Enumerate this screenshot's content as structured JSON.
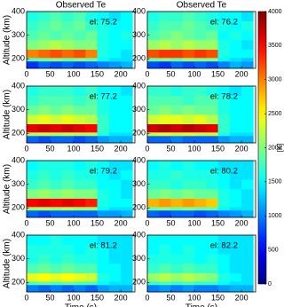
{
  "chart_data": [
    {
      "type": "heatmap",
      "title": "Observed Te",
      "annotation": "el: 75.2",
      "ylabel": "Altitude (km)",
      "xbins": [
        0,
        25,
        50,
        75,
        100,
        125,
        150,
        175,
        200,
        225
      ],
      "ybins": [
        160,
        190,
        205,
        240,
        280,
        320,
        360,
        400
      ],
      "xlim": [
        0,
        230
      ],
      "ylim": [
        160,
        400
      ],
      "xticks": [
        0,
        50,
        100,
        150,
        200
      ],
      "yticks": [
        200,
        300,
        400
      ],
      "z": [
        [
          700,
          900,
          800,
          900,
          800,
          900,
          1000,
          1100,
          1200
        ],
        [
          1800,
          1900,
          2000,
          1900,
          2000,
          1900,
          1500,
          1400,
          1400
        ],
        [
          3000,
          3100,
          3200,
          3100,
          3200,
          3000,
          1600,
          1500,
          1400
        ],
        [
          2000,
          2100,
          2200,
          2100,
          2000,
          2000,
          1600,
          1500,
          1500
        ],
        [
          1800,
          1900,
          1800,
          1900,
          1800,
          1900,
          1600,
          1500,
          1600
        ],
        [
          1700,
          1800,
          1900,
          1800,
          1900,
          1700,
          1600,
          1500,
          1500
        ],
        [
          1600,
          1700,
          1800,
          1700,
          1800,
          1600,
          1500,
          1400,
          1500
        ]
      ]
    },
    {
      "type": "heatmap",
      "title": "Observed Te",
      "annotation": "el: 76.2",
      "xbins": [
        0,
        25,
        50,
        75,
        100,
        125,
        150,
        175,
        200,
        225
      ],
      "ybins": [
        160,
        190,
        205,
        240,
        280,
        320,
        360,
        400
      ],
      "xlim": [
        0,
        230
      ],
      "ylim": [
        160,
        400
      ],
      "xticks": [
        0,
        50,
        100,
        150,
        200
      ],
      "yticks": [
        200,
        300,
        400
      ],
      "z": [
        [
          800,
          700,
          900,
          800,
          900,
          800,
          1000,
          1200,
          1100
        ],
        [
          1900,
          2000,
          1900,
          2100,
          2000,
          2000,
          1500,
          1400,
          1300
        ],
        [
          3200,
          3300,
          3300,
          3200,
          3300,
          3200,
          1600,
          1500,
          1500
        ],
        [
          2100,
          2200,
          2100,
          2200,
          2100,
          2100,
          1600,
          1500,
          1400
        ],
        [
          1800,
          1900,
          2000,
          1900,
          1800,
          1900,
          1500,
          1600,
          1500
        ],
        [
          1700,
          1800,
          1800,
          1900,
          1800,
          1700,
          1600,
          1500,
          1600
        ],
        [
          1600,
          1700,
          1700,
          1800,
          1700,
          1600,
          1500,
          1500,
          1400
        ]
      ]
    },
    {
      "type": "heatmap",
      "annotation": "el: 77.2",
      "ylabel": "Altitude (km)",
      "xbins": [
        0,
        25,
        50,
        75,
        100,
        125,
        150,
        175,
        200,
        225
      ],
      "ybins": [
        160,
        190,
        205,
        240,
        280,
        320,
        360,
        400
      ],
      "xlim": [
        0,
        230
      ],
      "ylim": [
        160,
        400
      ],
      "xticks": [
        0,
        50,
        100,
        150,
        200
      ],
      "yticks": [
        200,
        300,
        400
      ],
      "z": [
        [
          900,
          800,
          900,
          900,
          800,
          900,
          1100,
          1200,
          1200
        ],
        [
          2200,
          2300,
          2200,
          2300,
          2200,
          2200,
          1600,
          1400,
          1400
        ],
        [
          3600,
          3700,
          3600,
          3700,
          3600,
          3500,
          1700,
          1500,
          1500
        ],
        [
          2300,
          2400,
          2300,
          2400,
          2300,
          2200,
          1700,
          1500,
          1500
        ],
        [
          1900,
          2000,
          1900,
          2000,
          1900,
          1900,
          1600,
          1500,
          1500
        ],
        [
          1700,
          1800,
          1800,
          1800,
          1700,
          1800,
          1600,
          1500,
          1500
        ],
        [
          1600,
          1700,
          1700,
          1700,
          1600,
          1700,
          1500,
          1500,
          1400
        ]
      ]
    },
    {
      "type": "heatmap",
      "annotation": "el: 78.2",
      "xbins": [
        0,
        25,
        50,
        75,
        100,
        125,
        150,
        175,
        200,
        225
      ],
      "ybins": [
        160,
        190,
        205,
        240,
        280,
        320,
        360,
        400
      ],
      "xlim": [
        0,
        230
      ],
      "ylim": [
        160,
        400
      ],
      "xticks": [
        0,
        50,
        100,
        150,
        200
      ],
      "yticks": [
        200,
        300,
        400
      ],
      "z": [
        [
          900,
          900,
          1000,
          900,
          900,
          900,
          1100,
          1200,
          1200
        ],
        [
          2300,
          2400,
          2300,
          2400,
          2300,
          2300,
          1600,
          1400,
          1400
        ],
        [
          3700,
          3800,
          3700,
          3800,
          3700,
          3600,
          1700,
          1500,
          1500
        ],
        [
          2300,
          2400,
          2400,
          2300,
          2400,
          2200,
          1700,
          1500,
          1500
        ],
        [
          1900,
          2000,
          1900,
          2000,
          1900,
          1900,
          1600,
          1500,
          1500
        ],
        [
          1800,
          1800,
          1800,
          1700,
          1800,
          1800,
          1600,
          1500,
          1500
        ],
        [
          1700,
          1700,
          1600,
          1700,
          1700,
          1600,
          1500,
          1400,
          1500
        ]
      ]
    },
    {
      "type": "heatmap",
      "annotation": "el: 79.2",
      "ylabel": "Altitude (km)",
      "xbins": [
        0,
        25,
        50,
        75,
        100,
        125,
        150,
        175,
        200,
        225
      ],
      "ybins": [
        160,
        190,
        205,
        240,
        280,
        320,
        360,
        400
      ],
      "xlim": [
        0,
        230
      ],
      "ylim": [
        160,
        400
      ],
      "xticks": [
        0,
        50,
        100,
        150,
        200
      ],
      "yticks": [
        200,
        300,
        400
      ],
      "z": [
        [
          900,
          800,
          900,
          900,
          900,
          900,
          1100,
          1100,
          1200
        ],
        [
          2100,
          2200,
          2100,
          2200,
          2100,
          2100,
          1500,
          1400,
          1400
        ],
        [
          3500,
          3600,
          3500,
          3600,
          3500,
          3400,
          1600,
          1500,
          1500
        ],
        [
          2000,
          2100,
          2000,
          2100,
          2000,
          2000,
          1600,
          1500,
          1400
        ],
        [
          1700,
          1800,
          1700,
          1800,
          1700,
          1700,
          1500,
          1500,
          1400
        ],
        [
          1600,
          1700,
          1600,
          1700,
          1600,
          1600,
          1500,
          1400,
          1500
        ],
        [
          1500,
          1600,
          1600,
          1600,
          1500,
          1600,
          1500,
          1400,
          1400
        ]
      ]
    },
    {
      "type": "heatmap",
      "annotation": "el: 80.2",
      "xbins": [
        0,
        25,
        50,
        75,
        100,
        125,
        150,
        175,
        200,
        225
      ],
      "ybins": [
        160,
        190,
        205,
        240,
        280,
        320,
        360,
        400
      ],
      "xlim": [
        0,
        230
      ],
      "ylim": [
        160,
        400
      ],
      "xticks": [
        0,
        50,
        100,
        150,
        200
      ],
      "yticks": [
        200,
        300,
        400
      ],
      "z": [
        [
          900,
          800,
          900,
          900,
          800,
          900,
          1000,
          1100,
          1200
        ],
        [
          1900,
          2000,
          1900,
          2000,
          1900,
          1900,
          1500,
          1400,
          1400
        ],
        [
          2800,
          2900,
          2800,
          2900,
          2800,
          2700,
          1600,
          1500,
          1400
        ],
        [
          1900,
          2000,
          1900,
          2000,
          1900,
          1900,
          1600,
          1500,
          1400
        ],
        [
          1700,
          1700,
          1600,
          1700,
          1700,
          1600,
          1500,
          1400,
          1500
        ],
        [
          1600,
          1600,
          1700,
          1600,
          1600,
          1600,
          1500,
          1400,
          1400
        ],
        [
          1500,
          1600,
          1500,
          1600,
          1500,
          1500,
          1400,
          1400,
          1400
        ]
      ]
    },
    {
      "type": "heatmap",
      "annotation": "el: 81.2",
      "ylabel": "Altitude (km)",
      "xlabel": "Time (s)",
      "xbins": [
        0,
        25,
        50,
        75,
        100,
        125,
        150,
        175,
        200,
        225
      ],
      "ybins": [
        160,
        190,
        205,
        240,
        280,
        320,
        360,
        400
      ],
      "xlim": [
        0,
        230
      ],
      "ylim": [
        160,
        400
      ],
      "xticks": [
        0,
        50,
        100,
        150,
        200
      ],
      "yticks": [
        200,
        300,
        400
      ],
      "z": [
        [
          1000,
          900,
          1000,
          900,
          1000,
          900,
          1100,
          1200,
          1200
        ],
        [
          1800,
          1900,
          1800,
          1900,
          1800,
          1800,
          1500,
          1400,
          1400
        ],
        [
          2400,
          2500,
          2400,
          2500,
          2400,
          2300,
          1600,
          1500,
          1400
        ],
        [
          1800,
          1900,
          1800,
          1900,
          1800,
          1800,
          1500,
          1500,
          1400
        ],
        [
          1600,
          1700,
          1600,
          1700,
          1600,
          1600,
          1500,
          1400,
          1400
        ],
        [
          1600,
          1600,
          1600,
          1600,
          1500,
          1600,
          1500,
          1400,
          1400
        ],
        [
          1500,
          1500,
          1600,
          1500,
          1500,
          1500,
          1400,
          1400,
          1400
        ]
      ]
    },
    {
      "type": "heatmap",
      "annotation": "el: 82.2",
      "xlabel": "Time (s)",
      "xbins": [
        0,
        25,
        50,
        75,
        100,
        125,
        150,
        175,
        200,
        225
      ],
      "ybins": [
        160,
        190,
        205,
        240,
        280,
        320,
        360,
        400
      ],
      "xlim": [
        0,
        230
      ],
      "ylim": [
        160,
        400
      ],
      "xticks": [
        0,
        50,
        100,
        150,
        200
      ],
      "yticks": [
        200,
        300,
        400
      ],
      "z": [
        [
          1000,
          1100,
          1000,
          1100,
          1000,
          1000,
          1100,
          1200,
          1200
        ],
        [
          1700,
          1800,
          1700,
          1800,
          1700,
          1700,
          1500,
          1400,
          1400
        ],
        [
          2100,
          2200,
          2100,
          2200,
          2100,
          2000,
          1600,
          1500,
          1400
        ],
        [
          1700,
          1800,
          1700,
          1800,
          1700,
          1700,
          1500,
          1400,
          1400
        ],
        [
          1600,
          1600,
          1600,
          1600,
          1500,
          1600,
          1500,
          1400,
          1400
        ],
        [
          1500,
          1600,
          1500,
          1600,
          1500,
          1500,
          1400,
          1400,
          1400
        ],
        [
          1500,
          1500,
          1500,
          1500,
          1500,
          1500,
          1400,
          1400,
          1400
        ]
      ]
    }
  ],
  "colorbar": {
    "label": "[K]",
    "colormap": "jet",
    "lim": [
      0,
      4000
    ],
    "ticks": [
      0,
      500,
      1000,
      1500,
      2000,
      2500,
      3000,
      3500,
      4000
    ]
  }
}
